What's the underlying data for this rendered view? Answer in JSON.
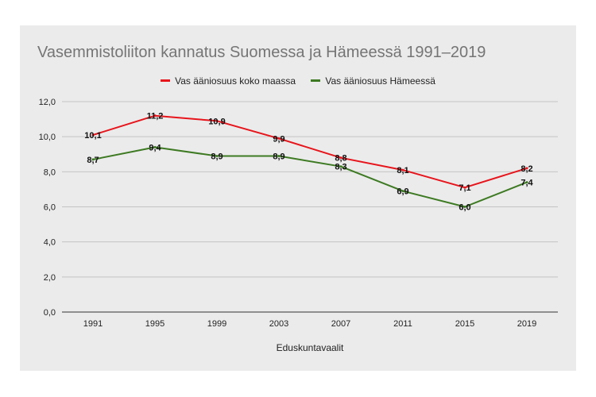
{
  "chart_data": {
    "type": "line",
    "title": "Vasemmistoliiton kannatus Suomessa ja Hämeessä 1991–2019",
    "xlabel": "Eduskuntavaalit",
    "ylabel": "",
    "categories": [
      "1991",
      "1995",
      "1999",
      "2003",
      "2007",
      "2011",
      "2015",
      "2019"
    ],
    "ylim": [
      0,
      12
    ],
    "yticks": [
      "0,0",
      "2,0",
      "4,0",
      "6,0",
      "8,0",
      "10,0",
      "12,0"
    ],
    "grid": true,
    "legend_position": "top",
    "series": [
      {
        "name": "Vas ääniosuus koko maassa",
        "color": "#e8141b",
        "values": [
          10.1,
          11.2,
          10.9,
          9.9,
          8.8,
          8.1,
          7.1,
          8.2
        ],
        "labels": [
          "10,1",
          "11,2",
          "10,9",
          "9,9",
          "8,8",
          "8,1",
          "7,1",
          "8,2"
        ]
      },
      {
        "name": "Vas ääniosuus Hämeessä",
        "color": "#3d7a22",
        "values": [
          8.7,
          9.4,
          8.9,
          8.9,
          8.3,
          6.9,
          6.0,
          7.4
        ],
        "labels": [
          "8,7",
          "9,4",
          "8,9",
          "8,9",
          "8,3",
          "6,9",
          "6,0",
          "7,4"
        ]
      }
    ]
  }
}
